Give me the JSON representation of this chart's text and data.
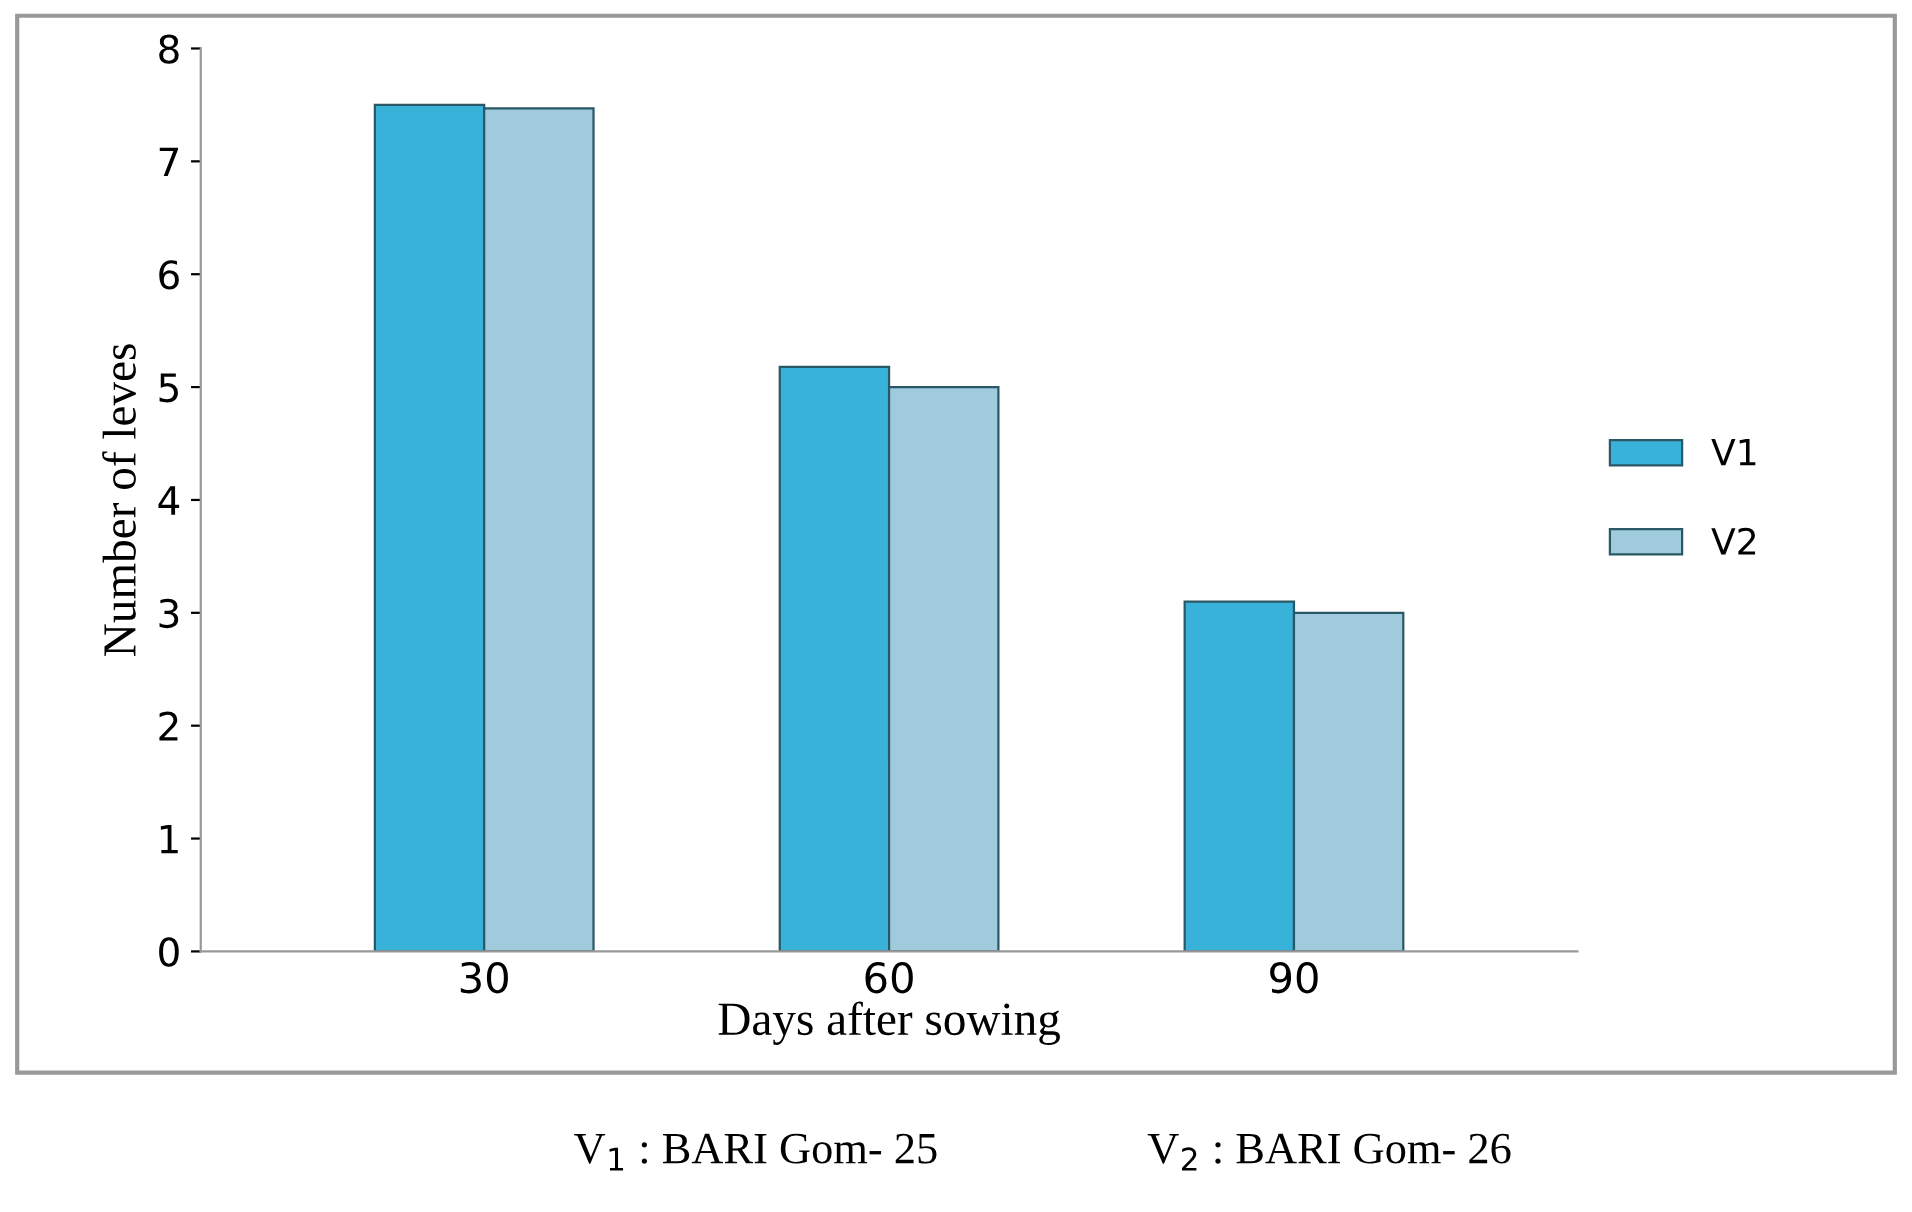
{
  "chart_data": {
    "type": "bar",
    "xlabel": "Days after sowing",
    "ylabel": "Number of leves",
    "categories": [
      "30",
      "60",
      "90"
    ],
    "series": [
      {
        "name": "V1",
        "color": "#38b2d8",
        "values": [
          7.5,
          5.18,
          3.1
        ]
      },
      {
        "name": "V2",
        "color": "#9fcbdc",
        "values": [
          7.47,
          5.0,
          3.0
        ]
      }
    ],
    "ylim": [
      0,
      8
    ],
    "yticks": [
      0,
      1,
      2,
      3,
      4,
      5,
      6,
      7,
      8
    ],
    "grid": false,
    "legend": "right",
    "annotations": [
      "V$_{1}$ : BARI Gom- 25",
      "V$_{2}$ : BARI Gom- 26"
    ]
  }
}
